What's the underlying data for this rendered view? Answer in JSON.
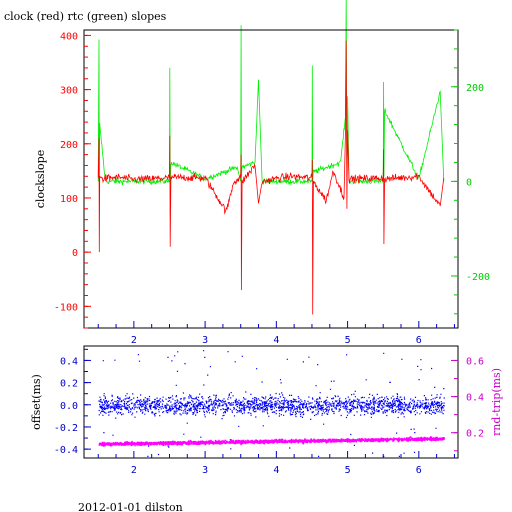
{
  "title": "clock (red) rtc (green) slopes",
  "footer": "2012-01-01 dilston",
  "colors": {
    "clock": "#ff0000",
    "rtc": "#00ee00",
    "offset": "#0000ff",
    "roundtrip": "#ff00ff",
    "frame": "#000000",
    "top_left_axis": "#ff0000",
    "top_right_axis": "#00cc00",
    "bottom_left_axis": "#0000cc",
    "bottom_right_axis": "#cc00cc"
  },
  "chart_data": [
    {
      "type": "line",
      "title": "clock (red) rtc (green) slopes",
      "ylabel": "clockslope",
      "x_range": [
        1.3,
        6.55
      ],
      "y_range": [
        -140,
        410
      ],
      "y_ticks": [
        -100,
        0,
        100,
        200,
        300,
        400
      ],
      "y2_range": [
        -310,
        320
      ],
      "y2_ticks": [
        -200,
        0,
        200
      ],
      "x_ticks": [
        2,
        3,
        4,
        5,
        6
      ],
      "grid": false,
      "series": [
        {
          "name": "clock",
          "axis": "left",
          "baseline": 137,
          "noise": 6,
          "points": [
            [
              1.5,
              137
            ],
            [
              1.51,
              210
            ],
            [
              1.515,
              0
            ],
            [
              1.52,
              140
            ],
            [
              1.55,
              136
            ],
            [
              1.8,
              138
            ],
            [
              2.0,
              134
            ],
            [
              2.5,
              137
            ],
            [
              2.505,
              215
            ],
            [
              2.51,
              10
            ],
            [
              2.52,
              138
            ],
            [
              3.0,
              137
            ],
            [
              3.3,
              75
            ],
            [
              3.4,
              130
            ],
            [
              3.5,
              137
            ],
            [
              3.505,
              180
            ],
            [
              3.51,
              -70
            ],
            [
              3.52,
              130
            ],
            [
              3.7,
              160
            ],
            [
              3.75,
              90
            ],
            [
              3.8,
              130
            ],
            [
              4.0,
              136
            ],
            [
              4.2,
              140
            ],
            [
              4.5,
              137
            ],
            [
              4.505,
              170
            ],
            [
              4.51,
              -115
            ],
            [
              4.52,
              130
            ],
            [
              4.7,
              95
            ],
            [
              4.8,
              150
            ],
            [
              4.95,
              100
            ],
            [
              4.97,
              215
            ],
            [
              4.98,
              390
            ],
            [
              4.99,
              80
            ],
            [
              5.0,
              225
            ],
            [
              5.02,
              135
            ],
            [
              5.5,
              137
            ],
            [
              5.505,
              190
            ],
            [
              5.51,
              15
            ],
            [
              5.52,
              135
            ],
            [
              6.0,
              140
            ],
            [
              6.3,
              85
            ],
            [
              6.35,
              137
            ]
          ]
        },
        {
          "name": "rtc",
          "axis": "right",
          "baseline": 0,
          "noise": 5,
          "points": [
            [
              1.5,
              0
            ],
            [
              1.51,
              300
            ],
            [
              1.515,
              -10
            ],
            [
              1.52,
              120
            ],
            [
              1.6,
              0
            ],
            [
              2.5,
              0
            ],
            [
              2.505,
              240
            ],
            [
              2.51,
              -5
            ],
            [
              2.52,
              40
            ],
            [
              3.0,
              5
            ],
            [
              3.45,
              30
            ],
            [
              3.5,
              0
            ],
            [
              3.505,
              330
            ],
            [
              3.51,
              10
            ],
            [
              3.52,
              30
            ],
            [
              3.7,
              40
            ],
            [
              3.75,
              215
            ],
            [
              3.8,
              0
            ],
            [
              4.5,
              0
            ],
            [
              4.505,
              245
            ],
            [
              4.51,
              0
            ],
            [
              4.52,
              20
            ],
            [
              4.9,
              40
            ],
            [
              4.97,
              135
            ],
            [
              4.98,
              390
            ],
            [
              4.99,
              0
            ],
            [
              5.0,
              180
            ],
            [
              5.02,
              0
            ],
            [
              5.5,
              0
            ],
            [
              5.505,
              210
            ],
            [
              5.51,
              10
            ],
            [
              5.52,
              150
            ],
            [
              6.0,
              5
            ],
            [
              6.3,
              190
            ],
            [
              6.35,
              0
            ]
          ]
        }
      ]
    },
    {
      "type": "scatter",
      "ylabel": "offset(ms)",
      "y2label": "rnd-trip(ms)",
      "x_range": [
        1.3,
        6.55
      ],
      "y_range": [
        -0.48,
        0.53
      ],
      "y_ticks": [
        -0.4,
        -0.2,
        0,
        0.2,
        0.4
      ],
      "y2_range": [
        0.06,
        0.68
      ],
      "y2_ticks": [
        0.2,
        0.4,
        0.6
      ],
      "x_ticks": [
        2,
        3,
        4,
        5,
        6
      ],
      "grid": false,
      "series": [
        {
          "name": "offset",
          "axis": "left",
          "center": 0,
          "spread": 0.12,
          "outlier_max": 0.5,
          "count": 2600
        },
        {
          "name": "rnd-trip",
          "axis": "right",
          "start": 0.14,
          "end": 0.17,
          "spread": 0.015,
          "count": 2200
        }
      ]
    }
  ]
}
